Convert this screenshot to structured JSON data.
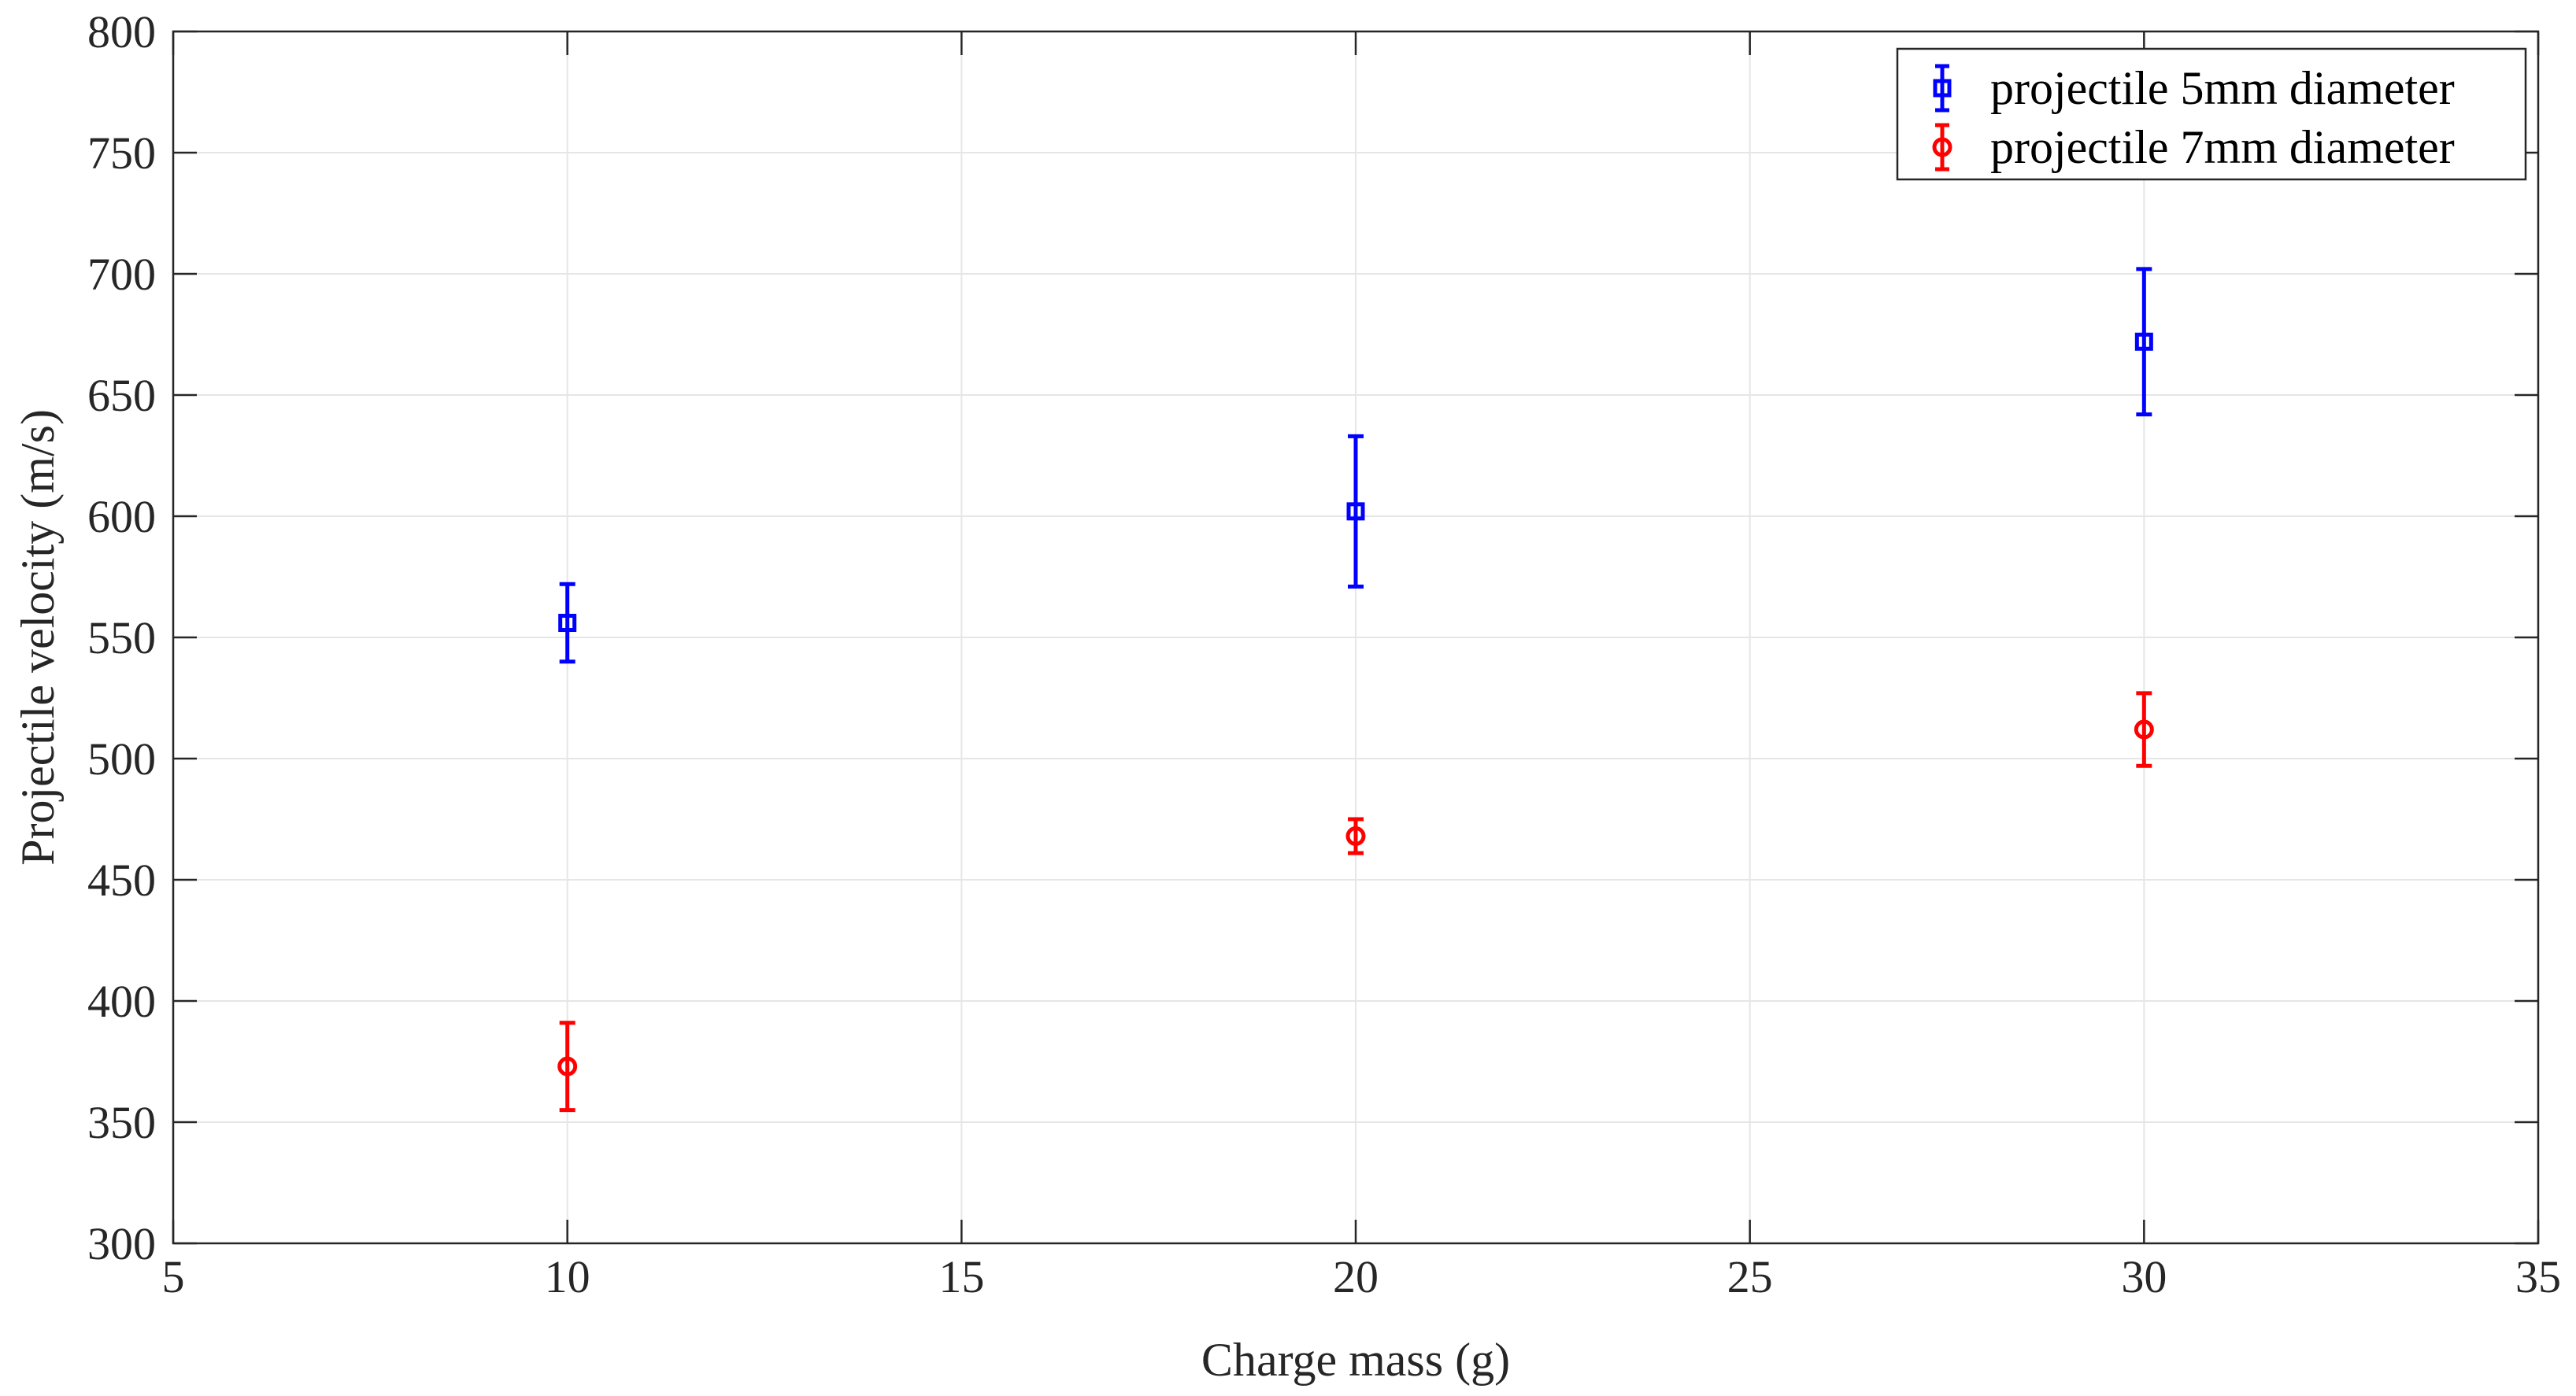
{
  "chart_data": {
    "type": "scatter",
    "xlabel": "Charge mass (g)",
    "ylabel": "Projectile velocity (m/s)",
    "xlim": [
      5,
      35
    ],
    "ylim": [
      300,
      800
    ],
    "xticks": [
      5,
      10,
      15,
      20,
      25,
      30,
      35
    ],
    "yticks": [
      300,
      350,
      400,
      450,
      500,
      550,
      600,
      650,
      700,
      750,
      800
    ],
    "grid": true,
    "legend_position": "top-right",
    "series": [
      {
        "name": "projectile 5mm diameter",
        "color": "#0000ff",
        "marker": "square",
        "x": [
          10,
          20,
          30
        ],
        "y": [
          556,
          602,
          672
        ],
        "error": [
          16,
          31,
          30
        ]
      },
      {
        "name": "projectile 7mm diameter",
        "color": "#ff0000",
        "marker": "circle",
        "x": [
          10,
          20,
          30
        ],
        "y": [
          373,
          468,
          512
        ],
        "error": [
          18,
          7,
          15
        ]
      }
    ]
  }
}
